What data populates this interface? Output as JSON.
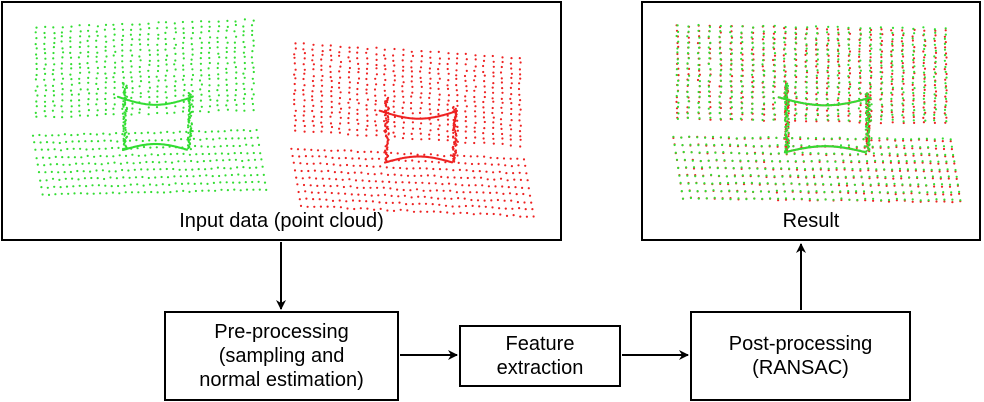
{
  "nodes": {
    "input": {
      "label": "Input data (point cloud)"
    },
    "result": {
      "label": "Result"
    },
    "preprocessing": {
      "lines": [
        "Pre-processing",
        "(sampling and",
        "normal estimation)"
      ]
    },
    "feature": {
      "lines": [
        "Feature",
        "extraction"
      ]
    },
    "postprocessing": {
      "lines": [
        "Post-processing",
        "(RANSAC)"
      ]
    }
  },
  "colors": {
    "source_cloud": "#33dd33",
    "target_cloud": "#ee2222",
    "line": "#000000"
  }
}
